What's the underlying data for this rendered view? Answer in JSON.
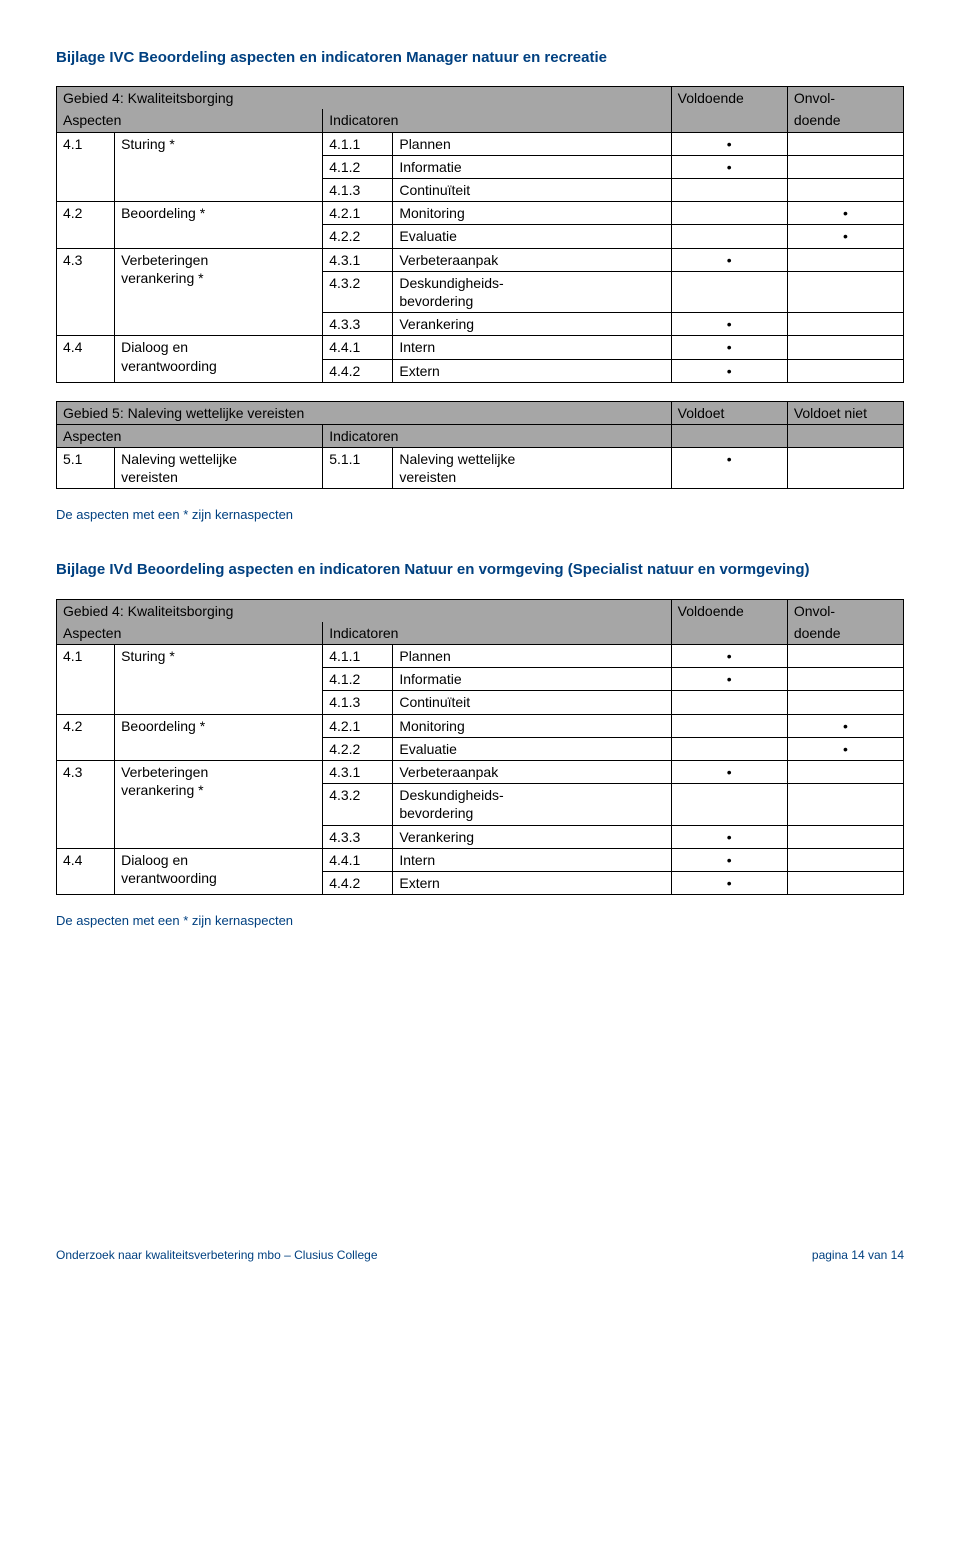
{
  "colors": {
    "heading": "#004080",
    "header_bg": "#a6a6a6",
    "border": "#000000",
    "text": "#000000",
    "bg": "#ffffff"
  },
  "typography": {
    "body_family": "Verdana",
    "body_size_pt": 10,
    "heading_size_pt": 11,
    "heading_weight": "bold"
  },
  "bullet": "•",
  "ivc": {
    "title": "Bijlage IVC Beoordeling aspecten en indicatoren Manager natuur en recreatie",
    "t4": {
      "header": "Gebied 4: Kwaliteitsborging",
      "col_v": "Voldoende",
      "col_o_l1": "Onvol-",
      "col_o_l2": "doende",
      "asp": "Aspecten",
      "ind": "Indicatoren",
      "rows": {
        "r41_num": "4.1",
        "r41_label": "Sturing *",
        "r411_num": "4.1.1",
        "r411_label": "Plannen",
        "r411_v": "•",
        "r412_num": "4.1.2",
        "r412_label": "Informatie",
        "r412_v": "•",
        "r413_num": "4.1.3",
        "r413_label": "Continuïteit",
        "r42_num": "4.2",
        "r42_label": "Beoordeling *",
        "r421_num": "4.2.1",
        "r421_label": "Monitoring",
        "r421_o": "•",
        "r422_num": "4.2.2",
        "r422_label": "Evaluatie",
        "r422_o": "•",
        "r43_num": "4.3",
        "r43_label_l1": "Verbeteringen",
        "r43_label_l2": "verankering *",
        "r431_num": "4.3.1",
        "r431_label": "Verbeteraanpak",
        "r431_v": "•",
        "r432_num": "4.3.2",
        "r432_label_l1": "Deskundigheids-",
        "r432_label_l2": "bevordering",
        "r433_num": "4.3.3",
        "r433_label": "Verankering",
        "r433_v": "•",
        "r44_num": "4.4",
        "r44_label_l1": "Dialoog en",
        "r44_label_l2": "verantwoording",
        "r441_num": "4.4.1",
        "r441_label": "Intern",
        "r441_v": "•",
        "r442_num": "4.4.2",
        "r442_label": "Extern",
        "r442_v": "•"
      }
    },
    "t5": {
      "header": "Gebied 5: Naleving wettelijke vereisten",
      "col_v": "Voldoet",
      "col_o": "Voldoet niet",
      "asp": "Aspecten",
      "ind": "Indicatoren",
      "rows": {
        "r51_num": "5.1",
        "r51_label_l1": "Naleving wettelijke",
        "r51_label_l2": "vereisten",
        "r511_num": "5.1.1",
        "r511_label_l1": "Naleving wettelijke",
        "r511_label_l2": "vereisten",
        "r511_v": "•"
      }
    }
  },
  "ivd": {
    "title": "Bijlage IVd Beoordeling aspecten en indicatoren Natuur en vormgeving (Specialist natuur en vormgeving)",
    "t4": {
      "header": "Gebied 4: Kwaliteitsborging",
      "col_v": "Voldoende",
      "col_o_l1": "Onvol-",
      "col_o_l2": "doende",
      "asp": "Aspecten",
      "ind": "Indicatoren",
      "rows": {
        "r41_num": "4.1",
        "r41_label": "Sturing *",
        "r411_num": "4.1.1",
        "r411_label": "Plannen",
        "r411_v": "•",
        "r412_num": "4.1.2",
        "r412_label": "Informatie",
        "r412_v": "•",
        "r413_num": "4.1.3",
        "r413_label": "Continuïteit",
        "r42_num": "4.2",
        "r42_label": "Beoordeling *",
        "r421_num": "4.2.1",
        "r421_label": "Monitoring",
        "r421_o": "•",
        "r422_num": "4.2.2",
        "r422_label": "Evaluatie",
        "r422_o": "•",
        "r43_num": "4.3",
        "r43_label_l1": "Verbeteringen",
        "r43_label_l2": "verankering *",
        "r431_num": "4.3.1",
        "r431_label": "Verbeteraanpak",
        "r431_v": "•",
        "r432_num": "4.3.2",
        "r432_label_l1": "Deskundigheids-",
        "r432_label_l2": "bevordering",
        "r433_num": "4.3.3",
        "r433_label": "Verankering",
        "r433_v": "•",
        "r44_num": "4.4",
        "r44_label_l1": "Dialoog en",
        "r44_label_l2": "verantwoording",
        "r441_num": "4.4.1",
        "r441_label": "Intern",
        "r441_v": "•",
        "r442_num": "4.4.2",
        "r442_label": "Extern",
        "r442_v": "•"
      }
    }
  },
  "note": "De aspecten met een * zijn kernaspecten",
  "footer": {
    "left": "Onderzoek naar kwaliteitsverbetering mbo – Clusius College",
    "right": "pagina 14 van 14"
  }
}
